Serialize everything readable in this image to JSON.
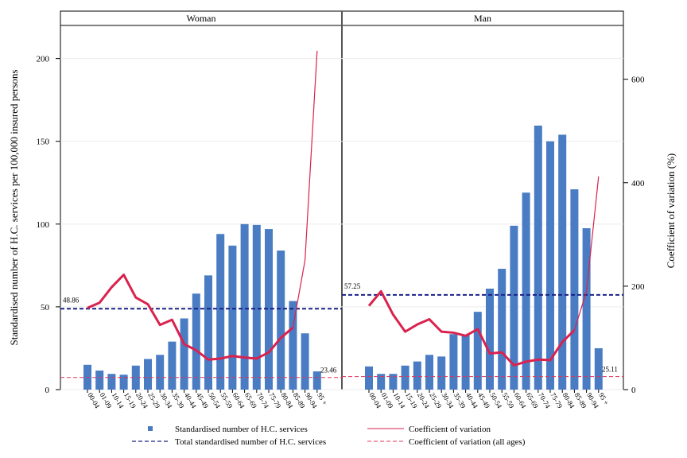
{
  "chart_data": {
    "type": "bar",
    "y_left_label": "Standardised number of H.C. services per 100,000 insured persons",
    "y_right_label": "Coefficient of variation (%)",
    "y_left_lim": [
      0,
      220
    ],
    "y_left_ticks": [
      "0",
      "50",
      "100",
      "150",
      "200"
    ],
    "y_right_lim": [
      0,
      704
    ],
    "y_right_ticks": [
      "0",
      "200",
      "400",
      "600"
    ],
    "categories": [
      "00-04",
      "01-09",
      "10-14",
      "15-19",
      "20-24",
      "25-29",
      "30-34",
      "35-39",
      "40-44",
      "45-49",
      "50-54",
      "55-59",
      "60-64",
      "65-69",
      "70-74",
      "75-79",
      "80-84",
      "85-89",
      "90-94",
      "95 +"
    ],
    "panels": [
      {
        "title": "Woman",
        "services": [
          15,
          11.5,
          9.5,
          9,
          14.5,
          18.5,
          21,
          29,
          43,
          58,
          69,
          94,
          87,
          100,
          99.5,
          97,
          84,
          53.5,
          34,
          11
        ],
        "cv": [
          158,
          168,
          198,
          222,
          178,
          165,
          125,
          135,
          88,
          76,
          58,
          60,
          65,
          62,
          60,
          72,
          100,
          120,
          250,
          655
        ],
        "total": 48.86,
        "total_label": "48.86",
        "cv_all": 23.46,
        "cv_all_label": "23.46"
      },
      {
        "title": "Man",
        "services": [
          14,
          9.5,
          9.5,
          14.5,
          17,
          21,
          20,
          33.5,
          33,
          47,
          61,
          73,
          99,
          119,
          159.5,
          150,
          154,
          121,
          97.5,
          25
        ],
        "cv": [
          162,
          190,
          145,
          112,
          126,
          136,
          112,
          110,
          104,
          117,
          70,
          72,
          47,
          54,
          58,
          57,
          92,
          115,
          190,
          412
        ],
        "total": 57.25,
        "total_label": "57.25",
        "cv_all": 25.11,
        "cv_all_label": "25.11"
      }
    ],
    "legend": {
      "services": "Standardised number of H.C. services",
      "total": "Total standardised number of H.C. services",
      "cv": "Coefficient of variation",
      "cv_all": "Coefficient of variation (all ages)"
    },
    "colors": {
      "bar": "#4a7cc3",
      "cv_line": "#d9224e",
      "total_line": "#1a2188",
      "cv_all_line": "#e0345e"
    }
  }
}
